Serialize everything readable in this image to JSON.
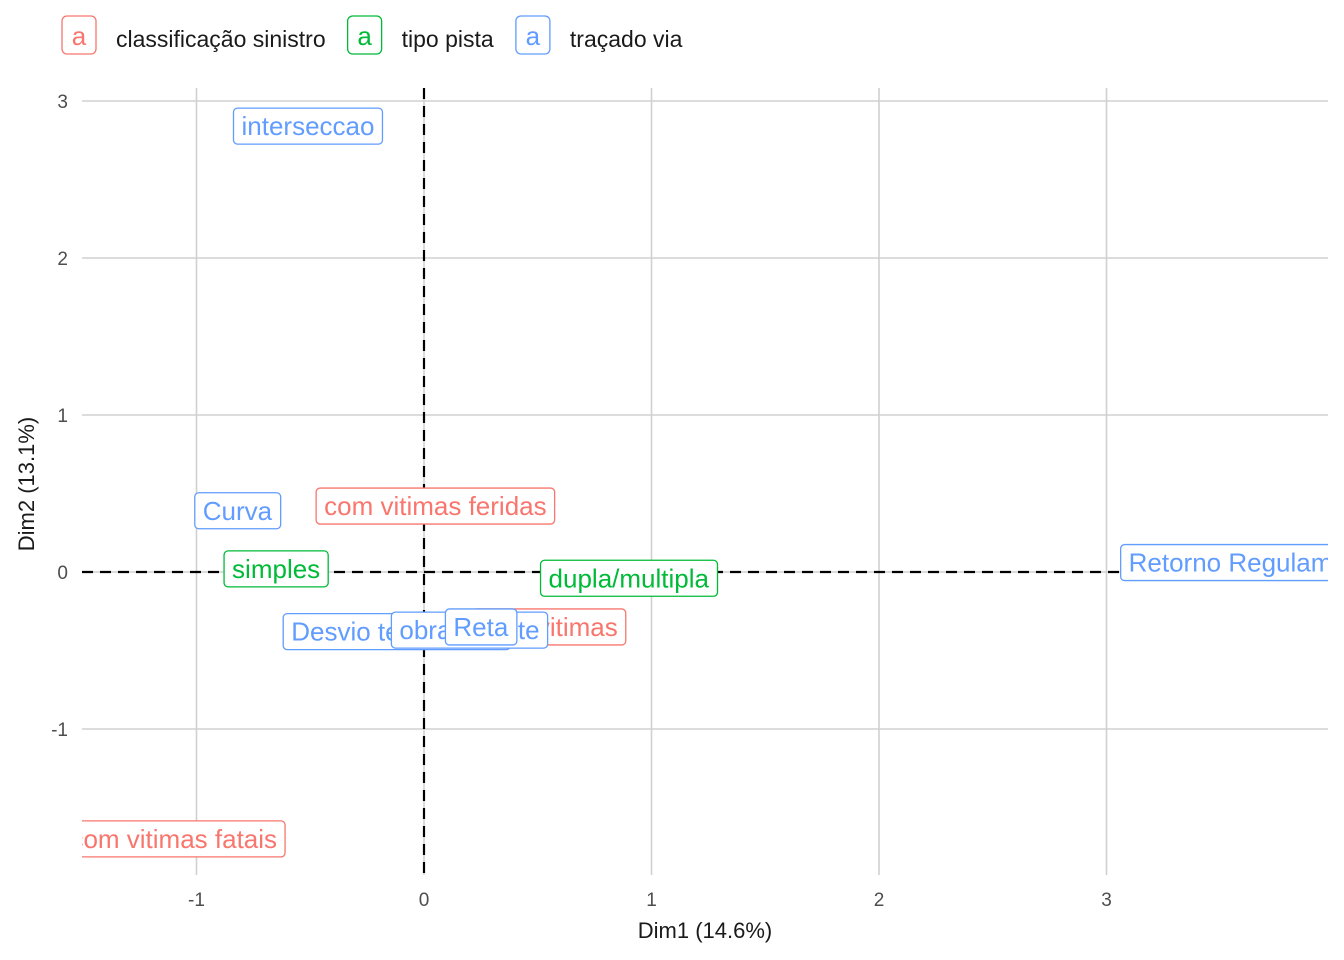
{
  "chart_data": {
    "type": "scatter",
    "xlabel": "Dim1 (14.6%)",
    "ylabel": "Dim2 (13.1%)",
    "xlim": [
      -1.5,
      3.95
    ],
    "ylim": [
      -1.95,
      3.08
    ],
    "x_ticks": [
      -1,
      0,
      1,
      2,
      3
    ],
    "y_ticks": [
      -1,
      0,
      1,
      2,
      3
    ],
    "grid": true,
    "reference_lines": {
      "x": 0,
      "y": 0,
      "style": "dashed"
    },
    "legend": {
      "position": "top-left",
      "key_glyph": "a",
      "entries": [
        {
          "name": "classificação sinistro",
          "color": "#F8766D"
        },
        {
          "name": "tipo pista",
          "color": "#00BA38"
        },
        {
          "name": "traçado via",
          "color": "#619CFF"
        }
      ]
    },
    "series": [
      {
        "name": "classificação sinistro",
        "color": "#F8766D",
        "points": [
          {
            "label": "com vitimas feridas",
            "x": 0.05,
            "y": 0.42
          },
          {
            "label": "sem vitimas",
            "x": 0.55,
            "y": -0.35
          },
          {
            "label": "com vitimas fatais",
            "x": -1.1,
            "y": -1.7
          }
        ]
      },
      {
        "name": "tipo pista",
        "color": "#00BA38",
        "points": [
          {
            "label": "simples",
            "x": -0.65,
            "y": 0.02
          },
          {
            "label": "dupla/multipla",
            "x": 0.9,
            "y": -0.04
          }
        ]
      },
      {
        "name": "traçado via",
        "color": "#619CFF",
        "points": [
          {
            "label": "interseccao",
            "x": -0.51,
            "y": 2.84
          },
          {
            "label": "Curva",
            "x": -0.82,
            "y": 0.39
          },
          {
            "label": "Desvio temporario",
            "x": -0.12,
            "y": -0.38
          },
          {
            "label": "obra de arte",
            "x": 0.2,
            "y": -0.37
          },
          {
            "label": "Reta",
            "x": 0.25,
            "y": -0.35
          },
          {
            "label": "Retorno Regulamentado",
            "x": 3.72,
            "y": 0.06
          }
        ]
      }
    ]
  }
}
